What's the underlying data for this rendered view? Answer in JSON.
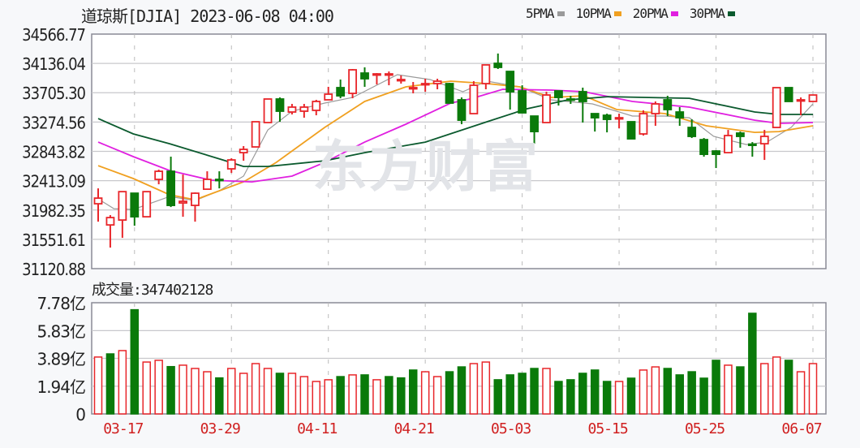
{
  "header": {
    "title": "道琼斯[DJIA] 2023-06-08 04:00"
  },
  "watermark": "东方财富",
  "legend": [
    {
      "label": "5PMA",
      "color": "#9a9a9a"
    },
    {
      "label": "10PMA",
      "color": "#f0a020"
    },
    {
      "label": "20PMA",
      "color": "#e020e0"
    },
    {
      "label": "30PMA",
      "color": "#0b5a2e"
    }
  ],
  "volume_title": "成交量:347402128",
  "colors": {
    "up": "#e8262a",
    "down": "#0a7a0a",
    "grid": "#c8c8cc",
    "border": "#8a8a96",
    "date": "#d02020"
  },
  "chart_data": [
    {
      "type": "candlestick",
      "title": "道琼斯[DJIA]",
      "ylim": [
        31120.88,
        34566.77
      ],
      "ytick_labels": [
        "34566.77",
        "34136.04",
        "33705.30",
        "33274.56",
        "32843.82",
        "32413.09",
        "31982.35",
        "31551.61",
        "31120.88"
      ],
      "ytick_values": [
        34566.77,
        34136.04,
        33705.3,
        33274.56,
        32843.82,
        32413.09,
        31982.35,
        31551.61,
        31120.88
      ],
      "xticks": [
        {
          "index": 3,
          "label": "03-17"
        },
        {
          "index": 11,
          "label": "03-29"
        },
        {
          "index": 19,
          "label": "04-11"
        },
        {
          "index": 27,
          "label": "04-21"
        },
        {
          "index": 35,
          "label": "05-03"
        },
        {
          "index": 43,
          "label": "05-15"
        },
        {
          "index": 51,
          "label": "05-25"
        },
        {
          "index": 59,
          "label": "06-07"
        }
      ],
      "ohlc": [
        [
          32074,
          32300,
          31811,
          32157
        ],
        [
          31763,
          31907,
          31430,
          31871
        ],
        [
          31835,
          32252,
          31573,
          32252
        ],
        [
          32229,
          32229,
          31751,
          31883
        ],
        [
          31883,
          32252,
          31883,
          32252
        ],
        [
          32432,
          32575,
          32360,
          32551
        ],
        [
          32551,
          32766,
          32026,
          32050
        ],
        [
          32086,
          32503,
          31883,
          32110
        ],
        [
          32050,
          32241,
          31811,
          32229
        ],
        [
          32288,
          32551,
          32288,
          32432
        ],
        [
          32432,
          32551,
          32300,
          32420
        ],
        [
          32587,
          32742,
          32527,
          32718
        ],
        [
          32825,
          32921,
          32706,
          32873
        ],
        [
          32909,
          33279,
          32909,
          33279
        ],
        [
          33267,
          33613,
          33267,
          33613
        ],
        [
          33613,
          33636,
          33279,
          33434
        ],
        [
          33422,
          33541,
          33386,
          33494
        ],
        [
          33434,
          33541,
          33338,
          33494
        ],
        [
          33446,
          33601,
          33374,
          33577
        ],
        [
          33601,
          33792,
          33601,
          33684
        ],
        [
          33780,
          33899,
          33624,
          33660
        ],
        [
          33696,
          34054,
          33624,
          34042
        ],
        [
          33994,
          34078,
          33792,
          33911
        ],
        [
          33970,
          33994,
          33827,
          33982
        ],
        [
          33970,
          34018,
          33815,
          33982
        ],
        [
          33887,
          33959,
          33839,
          33899
        ],
        [
          33768,
          33863,
          33696,
          33780
        ],
        [
          33830,
          33911,
          33720,
          33839
        ],
        [
          33839,
          33911,
          33756,
          33875
        ],
        [
          33839,
          33850,
          33553,
          33553
        ],
        [
          33601,
          33636,
          33243,
          33302
        ],
        [
          33398,
          33875,
          33398,
          33815
        ],
        [
          33839,
          34114,
          33756,
          34114
        ],
        [
          34137,
          34281,
          34054,
          34078
        ],
        [
          34018,
          34018,
          33458,
          33720
        ],
        [
          33732,
          33815,
          33410,
          33410
        ],
        [
          33362,
          33362,
          32956,
          33135
        ],
        [
          33267,
          33720,
          33267,
          33672
        ],
        [
          33732,
          33732,
          33517,
          33636
        ],
        [
          33613,
          33660,
          33541,
          33601
        ],
        [
          33720,
          33780,
          33267,
          33577
        ],
        [
          33398,
          33398,
          33135,
          33338
        ],
        [
          33374,
          33398,
          33123,
          33314
        ],
        [
          33330,
          33398,
          33183,
          33338
        ],
        [
          33279,
          33279,
          33028,
          33028
        ],
        [
          33100,
          33446,
          33076,
          33398
        ],
        [
          33398,
          33577,
          33219,
          33541
        ],
        [
          33601,
          33660,
          33362,
          33458
        ],
        [
          33422,
          33494,
          33219,
          33338
        ],
        [
          33195,
          33314,
          33040,
          33064
        ],
        [
          33016,
          33040,
          32766,
          32801
        ],
        [
          32849,
          32861,
          32599,
          32801
        ],
        [
          32825,
          33159,
          32825,
          33076
        ],
        [
          33112,
          33135,
          32897,
          33064
        ],
        [
          32950,
          32980,
          32766,
          32944
        ],
        [
          32956,
          33159,
          32718,
          33064
        ],
        [
          33195,
          33780,
          33195,
          33780
        ],
        [
          33780,
          33780,
          33577,
          33577
        ],
        [
          33595,
          33636,
          33374,
          33601
        ],
        [
          33577,
          33672,
          33577,
          33672
        ]
      ],
      "series": [
        {
          "name": "5PMA",
          "points": [
            [
              0,
              32145
            ],
            [
              1.3,
              32002
            ],
            [
              2.9,
              31990
            ],
            [
              5.9,
              32181
            ],
            [
              8,
              32121
            ],
            [
              10,
              32265
            ],
            [
              12,
              32480
            ],
            [
              14,
              33159
            ],
            [
              16,
              33434
            ],
            [
              18.7,
              33553
            ],
            [
              21,
              33636
            ],
            [
              24.7,
              33970
            ],
            [
              27.4,
              33899
            ],
            [
              30.1,
              33720
            ],
            [
              32.1,
              33875
            ],
            [
              34.8,
              33792
            ],
            [
              37.4,
              33601
            ],
            [
              40.8,
              33541
            ],
            [
              44.1,
              33362
            ],
            [
              46.8,
              33362
            ],
            [
              48.8,
              33338
            ],
            [
              50.8,
              33064
            ],
            [
              53.5,
              32944
            ],
            [
              55.2,
              32980
            ],
            [
              57.2,
              33195
            ],
            [
              59,
              33541
            ]
          ]
        },
        {
          "name": "10PMA",
          "points": [
            [
              0,
              32634
            ],
            [
              2.9,
              32444
            ],
            [
              5.9,
              32206
            ],
            [
              8,
              32133
            ],
            [
              12,
              32396
            ],
            [
              14.7,
              32682
            ],
            [
              18.7,
              33195
            ],
            [
              22,
              33577
            ],
            [
              25.4,
              33792
            ],
            [
              29.1,
              33875
            ],
            [
              32.1,
              33839
            ],
            [
              34.8,
              33792
            ],
            [
              37.4,
              33636
            ],
            [
              40.1,
              33660
            ],
            [
              42.8,
              33458
            ],
            [
              46.8,
              33398
            ],
            [
              50.2,
              33219
            ],
            [
              54.2,
              33123
            ],
            [
              56.2,
              33135
            ],
            [
              59,
              33219
            ]
          ]
        },
        {
          "name": "20PMA",
          "points": [
            [
              0,
              32980
            ],
            [
              2.9,
              32766
            ],
            [
              5.9,
              32563
            ],
            [
              9.3,
              32420
            ],
            [
              12.7,
              32396
            ],
            [
              16,
              32480
            ],
            [
              18.7,
              32682
            ],
            [
              22,
              32980
            ],
            [
              25.4,
              33243
            ],
            [
              29.1,
              33553
            ],
            [
              30.7,
              33613
            ],
            [
              33.4,
              33756
            ],
            [
              37.4,
              33744
            ],
            [
              40.1,
              33720
            ],
            [
              44.1,
              33577
            ],
            [
              48.8,
              33494
            ],
            [
              54.2,
              33302
            ],
            [
              56.2,
              33255
            ],
            [
              59,
              33267
            ]
          ]
        },
        {
          "name": "30PMA",
          "points": [
            [
              0,
              33326
            ],
            [
              2.9,
              33100
            ],
            [
              5.9,
              32956
            ],
            [
              10.3,
              32718
            ],
            [
              12,
              32622
            ],
            [
              14,
              32622
            ],
            [
              18.7,
              32706
            ],
            [
              22,
              32825
            ],
            [
              27,
              32980
            ],
            [
              32.1,
              33279
            ],
            [
              35.4,
              33470
            ],
            [
              38.8,
              33601
            ],
            [
              42.1,
              33648
            ],
            [
              48.8,
              33624
            ],
            [
              54.2,
              33422
            ],
            [
              56.2,
              33386
            ],
            [
              59,
              33386
            ]
          ]
        }
      ]
    },
    {
      "type": "bar",
      "title": "成交量",
      "unit": "亿",
      "ylim": [
        0,
        7.78
      ],
      "ytick_labels": [
        "7.78亿",
        "5.83亿",
        "3.89亿",
        "1.94亿",
        "0"
      ],
      "ytick_values": [
        7.78,
        5.83,
        3.89,
        1.94,
        0
      ],
      "values": [
        3.98,
        4.2,
        4.43,
        7.29,
        3.63,
        3.75,
        3.31,
        3.41,
        3.18,
        2.95,
        2.52,
        3.18,
        2.84,
        3.52,
        3.18,
        2.84,
        2.84,
        2.61,
        2.27,
        2.39,
        2.61,
        2.73,
        2.73,
        2.39,
        2.61,
        2.52,
        3.07,
        2.95,
        2.61,
        2.95,
        3.29,
        3.52,
        3.63,
        2.39,
        2.73,
        2.84,
        3.18,
        3.18,
        2.27,
        2.39,
        2.84,
        3.07,
        2.27,
        2.27,
        2.5,
        3.07,
        3.29,
        3.18,
        2.73,
        2.95,
        2.5,
        3.75,
        3.41,
        3.29,
        7.04,
        3.52,
        3.98,
        3.75,
        2.95,
        3.52
      ],
      "direction": [
        "up",
        "down",
        "up",
        "down",
        "up",
        "up",
        "down",
        "up",
        "up",
        "up",
        "down",
        "up",
        "up",
        "up",
        "up",
        "down",
        "up",
        "up",
        "up",
        "up",
        "down",
        "up",
        "down",
        "up",
        "down",
        "down",
        "down",
        "up",
        "up",
        "down",
        "down",
        "up",
        "up",
        "down",
        "down",
        "down",
        "down",
        "up",
        "down",
        "down",
        "down",
        "down",
        "down",
        "up",
        "down",
        "up",
        "up",
        "down",
        "down",
        "down",
        "down",
        "down",
        "up",
        "down",
        "down",
        "up",
        "up",
        "down",
        "up",
        "up"
      ]
    }
  ]
}
